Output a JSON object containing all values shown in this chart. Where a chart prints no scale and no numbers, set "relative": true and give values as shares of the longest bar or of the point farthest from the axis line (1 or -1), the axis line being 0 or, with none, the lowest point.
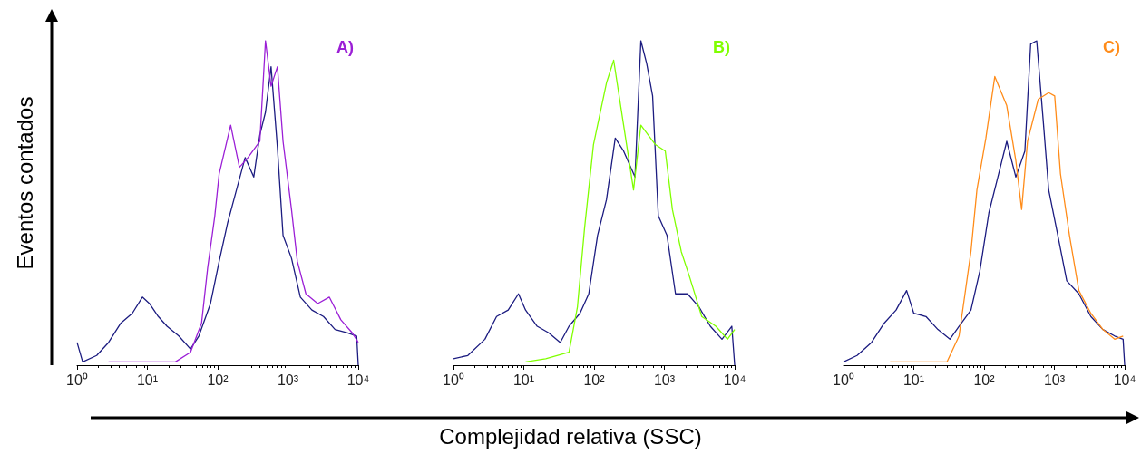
{
  "chart_data": [
    {
      "type": "line",
      "title": "A)",
      "ylabel": "Eventos contados",
      "relative": true,
      "log": "x",
      "xlim": [
        1,
        10000
      ],
      "xticks": [
        {
          "value": 1,
          "label": "10⁰"
        },
        {
          "value": 10,
          "label": "10¹"
        },
        {
          "value": 100,
          "label": "10²"
        },
        {
          "value": 1000,
          "label": "10³"
        },
        {
          "value": 10000,
          "label": "10⁴"
        }
      ],
      "series": [
        {
          "color": "#1c1c80",
          "x": [
            1,
            1.2,
            1.9,
            2.8,
            4.2,
            6.1,
            8.5,
            10.7,
            14.3,
            19,
            28,
            41,
            54,
            79,
            105,
            139,
            185,
            246,
            326,
            398,
            479,
            575,
            708,
            851,
            1122,
            1500,
            2190,
            3200,
            4680,
            6900,
            9500,
            10000
          ],
          "values": [
            0.07,
            0.01,
            0.03,
            0.07,
            0.13,
            0.16,
            0.21,
            0.19,
            0.15,
            0.12,
            0.09,
            0.05,
            0.09,
            0.19,
            0.32,
            0.44,
            0.54,
            0.64,
            0.58,
            0.71,
            0.78,
            0.92,
            0.67,
            0.4,
            0.33,
            0.21,
            0.17,
            0.15,
            0.11,
            0.1,
            0.09,
            0
          ]
        },
        {
          "color": "#9b1fd6",
          "x": [
            2.8,
            25,
            41,
            59,
            72,
            91,
            105,
            153,
            204,
            270,
            398,
            479,
            575,
            708,
            851,
            1122,
            1360,
            1800,
            2650,
            3870,
            5650,
            8200,
            10000
          ],
          "values": [
            0.01,
            0.01,
            0.04,
            0.13,
            0.3,
            0.46,
            0.59,
            0.74,
            0.61,
            0.64,
            0.69,
            1,
            0.86,
            0.92,
            0.69,
            0.48,
            0.32,
            0.22,
            0.19,
            0.21,
            0.14,
            0.1,
            0.07
          ]
        }
      ]
    },
    {
      "type": "line",
      "title": "B)",
      "xlabel": "Complejidad relativa (SSC)",
      "relative": true,
      "log": "x",
      "xlim": [
        1,
        10000
      ],
      "xticks": [
        {
          "value": 1,
          "label": "10⁰"
        },
        {
          "value": 10,
          "label": "10¹"
        },
        {
          "value": 100,
          "label": "10²"
        },
        {
          "value": 1000,
          "label": "10³"
        },
        {
          "value": 10000,
          "label": "10⁴"
        }
      ],
      "series": [
        {
          "color": "#1c1c80",
          "x": [
            1,
            1.6,
            2.8,
            4.1,
            6,
            8.4,
            10.6,
            15.5,
            22.6,
            33,
            44,
            63,
            84,
            112,
            150,
            200,
            263,
            382,
            463,
            560,
            680,
            820,
            1090,
            1440,
            2130,
            3100,
            4500,
            6600,
            9100,
            10000
          ],
          "values": [
            0.02,
            0.03,
            0.08,
            0.15,
            0.17,
            0.22,
            0.17,
            0.12,
            0.1,
            0.07,
            0.12,
            0.16,
            0.22,
            0.4,
            0.51,
            0.7,
            0.66,
            0.58,
            1,
            0.93,
            0.83,
            0.46,
            0.4,
            0.22,
            0.22,
            0.18,
            0.12,
            0.08,
            0.12,
            0
          ]
        },
        {
          "color": "#80ff00",
          "x": [
            10.6,
            20.5,
            44,
            58,
            73,
            98,
            150,
            190,
            263,
            364,
            463,
            745,
            1030,
            1300,
            1740,
            2300,
            3400,
            5400,
            7900,
            10000
          ],
          "values": [
            0.01,
            0.02,
            0.04,
            0.18,
            0.42,
            0.68,
            0.87,
            0.94,
            0.74,
            0.54,
            0.74,
            0.68,
            0.66,
            0.48,
            0.35,
            0.27,
            0.15,
            0.12,
            0.08,
            0.11
          ]
        }
      ]
    },
    {
      "type": "line",
      "title": "C)",
      "relative": true,
      "log": "x",
      "xlim": [
        1,
        10000
      ],
      "xticks": [
        {
          "value": 1,
          "label": "10⁰"
        },
        {
          "value": 10,
          "label": "10¹"
        },
        {
          "value": 100,
          "label": "10²"
        },
        {
          "value": 1000,
          "label": "10³"
        },
        {
          "value": 10000,
          "label": "10⁴"
        }
      ],
      "series": [
        {
          "color": "#1c1c80",
          "x": [
            1,
            1.56,
            2.5,
            3.8,
            5.6,
            7.9,
            10,
            14.9,
            22,
            32.6,
            44,
            65,
            87,
            117,
            157,
            210,
            283,
            380,
            460,
            560,
            690,
            830,
            1120,
            1500,
            2230,
            3300,
            4900,
            7200,
            9500,
            10000
          ],
          "values": [
            0.01,
            0.03,
            0.07,
            0.13,
            0.17,
            0.23,
            0.16,
            0.15,
            0.11,
            0.08,
            0.12,
            0.17,
            0.29,
            0.47,
            0.58,
            0.69,
            0.58,
            0.66,
            0.99,
            1,
            0.76,
            0.54,
            0.4,
            0.26,
            0.22,
            0.15,
            0.11,
            0.09,
            0.08,
            0
          ]
        },
        {
          "color": "#ff8c1a",
          "x": [
            4.6,
            29.6,
            44,
            65,
            79,
            106,
            142,
            210,
            283,
            342,
            415,
            590,
            830,
            1010,
            1220,
            1640,
            2230,
            3300,
            4900,
            7200,
            9500
          ],
          "values": [
            0.01,
            0.01,
            0.09,
            0.35,
            0.54,
            0.7,
            0.89,
            0.8,
            0.63,
            0.48,
            0.69,
            0.82,
            0.84,
            0.83,
            0.59,
            0.4,
            0.23,
            0.16,
            0.11,
            0.08,
            0.09
          ]
        }
      ]
    }
  ]
}
